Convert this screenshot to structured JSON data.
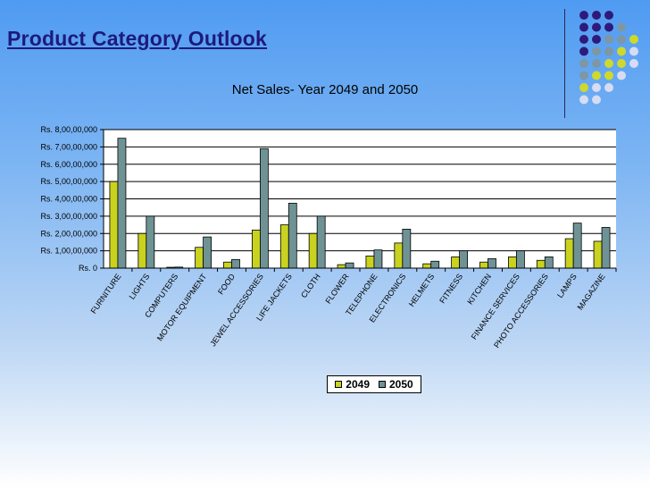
{
  "slide": {
    "title": "Product Category Outlook"
  },
  "decor": {
    "dot_colors": {
      "purple": "#2e1a7a",
      "gray": "#7f96a3",
      "yellow": "#cfd92b",
      "light": "#d6dcf2"
    },
    "dot_rows": [
      [
        "purple",
        "purple",
        "purple"
      ],
      [
        "purple",
        "purple",
        "purple",
        "gray"
      ],
      [
        "purple",
        "purple",
        "gray",
        "gray",
        "yellow"
      ],
      [
        "purple",
        "gray",
        "gray",
        "yellow",
        "light"
      ],
      [
        "gray",
        "gray",
        "yellow",
        "yellow",
        "light"
      ],
      [
        "gray",
        "yellow",
        "yellow",
        "light"
      ],
      [
        "yellow",
        "light",
        "light"
      ],
      [
        "light",
        "light"
      ]
    ]
  },
  "chart_data": {
    "type": "bar",
    "title": "Net Sales- Year 2049  and 2050",
    "categories": [
      "FURNITURE",
      "LIGHTS",
      "COMPUTERS",
      "MOTOR EQUIPMENT",
      "FOOD",
      "JEWEL ACCESSORIES",
      "LIFE JACKETS",
      "CLOTH",
      "FLOWER",
      "TELEPHONE",
      "ELECTRONICS",
      "HELMETS",
      "FITNESS",
      "KITCHEN",
      "FINANCE SERVICES",
      "PHOTO ACCESSORIES",
      "LAMPS",
      "MAGAZINE"
    ],
    "series": [
      {
        "name": "2049",
        "color": "#c9d21f",
        "values": [
          50000000,
          20000000,
          500000,
          12000000,
          3500000,
          22000000,
          25000000,
          20000000,
          2000000,
          7000000,
          14500000,
          2500000,
          6500000,
          3500000,
          6500000,
          4500000,
          17000000,
          15500000
        ]
      },
      {
        "name": "2050",
        "color": "#6f9395",
        "values": [
          75000000,
          30000000,
          600000,
          18000000,
          5000000,
          69000000,
          37500000,
          30000000,
          3000000,
          10500000,
          22500000,
          4000000,
          10000000,
          5500000,
          10000000,
          6500000,
          26000000,
          23500000
        ]
      }
    ],
    "y_ticks": [
      "Rs. 0",
      "Rs. 1,00,00,000",
      "Rs. 2,00,00,000",
      "Rs. 3,00,00,000",
      "Rs. 4,00,00,000",
      "Rs. 5,00,00,000",
      "Rs. 6,00,00,000",
      "Rs. 7,00,00,000",
      "Rs. 8,00,00,000"
    ],
    "ylim": [
      0,
      80000000
    ],
    "grid": true,
    "legend_position": "bottom",
    "plot_background": "#ffffff"
  }
}
